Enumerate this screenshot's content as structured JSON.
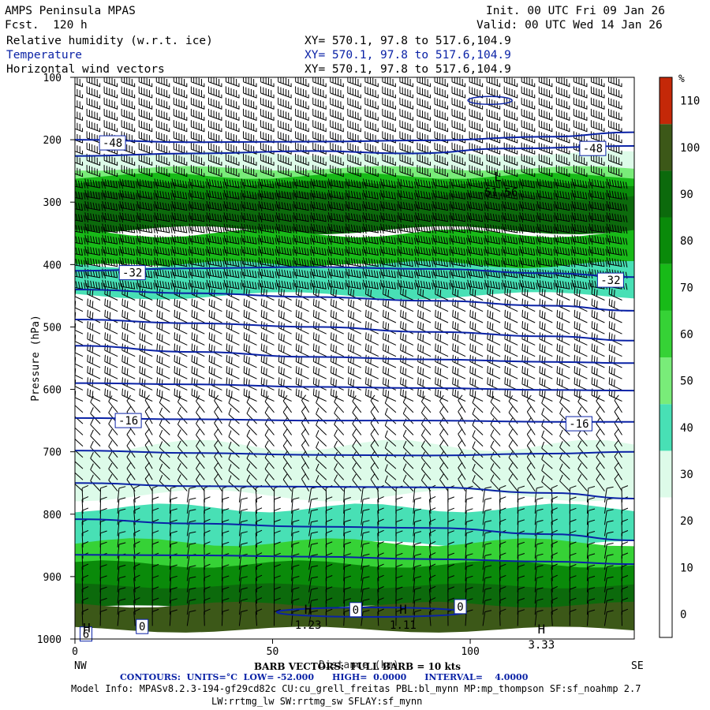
{
  "header": {
    "model": "AMPS Peninsula MPAS",
    "fcst": "Fcst.  120 h",
    "init": "Init. 00 UTC Fri 09 Jan 26",
    "valid": "Valid: 00 UTC Wed 14 Jan 26"
  },
  "fields": [
    {
      "label": "Relative humidity (w.r.t. ice)",
      "xy": "XY= 570.1, 97.8 to 517.6,104.9"
    },
    {
      "label": "Temperature",
      "xy": "XY= 570.1, 97.8 to 517.6,104.9"
    },
    {
      "label": "Horizontal wind vectors",
      "xy": "XY= 570.1, 97.8 to 517.6,104.9"
    }
  ],
  "colors": {
    "temperature_contour": "#0a22a6",
    "barb": "#000000",
    "rh_bands": [
      "#ffffff",
      "#ffffff",
      "#ffffff",
      "#ddfbe9",
      "#48e0b5",
      "#79ec79",
      "#36d236",
      "#18ba18",
      "#0a8a0a",
      "#0c6a0c",
      "#3c5818",
      "#c42808"
    ]
  },
  "chart_data": {
    "type": "heatmap",
    "ylabel": "Pressure (hPa)",
    "xlabel": "Distance (km)",
    "x_left_label": "NW",
    "x_right_label": "SE",
    "xlim": [
      0,
      141.5
    ],
    "ylim": [
      1000,
      100
    ],
    "x_ticks": [
      0,
      50,
      100
    ],
    "y_ticks": [
      100,
      200,
      300,
      400,
      500,
      600,
      700,
      800,
      900,
      1000
    ],
    "colorbar": {
      "unit": "%",
      "levels": [
        0,
        10,
        20,
        30,
        40,
        50,
        60,
        70,
        80,
        90,
        100,
        110
      ]
    },
    "rh_layers": [
      {
        "p_top": 222,
        "p_bot": 258,
        "rh": 35
      },
      {
        "p_top": 246,
        "p_bot": 278,
        "rh": 55
      },
      {
        "p_top": 258,
        "p_bot": 300,
        "rh": 75
      },
      {
        "p_top": 270,
        "p_bot": 312,
        "rh": 88
      },
      {
        "p_top": 290,
        "p_bot": 345,
        "rh": 95
      },
      {
        "p_top": 350,
        "p_bot": 405,
        "rh": 72
      },
      {
        "p_top": 400,
        "p_bot": 450,
        "rh": 45
      },
      {
        "p_top": 690,
        "p_bot": 770,
        "rh": 35
      },
      {
        "p_top": 790,
        "p_bot": 850,
        "rh": 45
      },
      {
        "p_top": 845,
        "p_bot": 900,
        "rh": 65
      },
      {
        "p_top": 880,
        "p_bot": 930,
        "rh": 80
      },
      {
        "p_top": 915,
        "p_bot": 950,
        "rh": 92
      },
      {
        "p_top": 945,
        "p_bot": 985,
        "rh": 105
      }
    ],
    "temperature_contours": [
      {
        "label": "-48",
        "x": [
          0,
          30,
          60,
          90,
          120,
          141.5
        ],
        "p": [
          200,
          204,
          203,
          201,
          195,
          188
        ]
      },
      {
        "label": "",
        "x": [
          0,
          30,
          60,
          85,
          110,
          141.5
        ],
        "p": [
          226,
          222,
          218,
          222,
          214,
          210
        ]
      },
      {
        "label": "-32",
        "x": [
          0,
          30,
          60,
          90,
          120,
          141.5
        ],
        "p": [
          410,
          406,
          404,
          407,
          414,
          420
        ]
      },
      {
        "label": "",
        "x": [
          0,
          30,
          60,
          90,
          120,
          141.5
        ],
        "p": [
          440,
          446,
          452,
          458,
          466,
          474
        ]
      },
      {
        "label": "",
        "x": [
          0,
          30,
          60,
          90,
          120,
          141.5
        ],
        "p": [
          488,
          494,
          500,
          508,
          515,
          522
        ]
      },
      {
        "label": "",
        "x": [
          0,
          30,
          60,
          90,
          120,
          141.5
        ],
        "p": [
          530,
          540,
          548,
          552,
          556,
          558
        ]
      },
      {
        "label": "",
        "x": [
          0,
          30,
          60,
          90,
          120,
          141.5
        ],
        "p": [
          590,
          592,
          596,
          598,
          601,
          602
        ]
      },
      {
        "label": "-16",
        "x": [
          0,
          30,
          60,
          90,
          120,
          141.5
        ],
        "p": [
          646,
          648,
          650,
          650,
          652,
          652
        ]
      },
      {
        "label": "",
        "x": [
          0,
          30,
          60,
          90,
          120,
          141.5
        ],
        "p": [
          698,
          702,
          705,
          706,
          703,
          700
        ]
      },
      {
        "label": "",
        "x": [
          0,
          30,
          60,
          90,
          120,
          141.5
        ],
        "p": [
          750,
          755,
          756,
          757,
          766,
          775
        ]
      },
      {
        "label": "",
        "x": [
          0,
          30,
          60,
          90,
          120,
          141.5
        ],
        "p": [
          808,
          815,
          820,
          822,
          832,
          842
        ]
      },
      {
        "label": "",
        "x": [
          0,
          30,
          60,
          90,
          120,
          141.5
        ],
        "p": [
          865,
          866,
          868,
          872,
          876,
          880
        ]
      }
    ],
    "contour_labels": [
      {
        "text": "-48",
        "x": 9.5,
        "p": 205
      },
      {
        "text": "-48",
        "x": 131,
        "p": 214
      },
      {
        "text": "-32",
        "x": 14.5,
        "p": 413
      },
      {
        "text": "-32",
        "x": 135.5,
        "p": 425
      },
      {
        "text": "-16",
        "x": 13.5,
        "p": 650
      },
      {
        "text": "-16",
        "x": 127.5,
        "p": 655
      },
      {
        "text": "0",
        "x": 71,
        "p": 953
      },
      {
        "text": "0",
        "x": 97.5,
        "p": 948
      },
      {
        "text": "0",
        "x": 17,
        "p": 980
      },
      {
        "text": "6",
        "x": 2.8,
        "p": 992
      }
    ],
    "extrema": [
      {
        "type": "L",
        "x": 107,
        "p": 260,
        "value": "-51.56"
      },
      {
        "type": "H",
        "x": 59,
        "p": 953,
        "value": "1.23"
      },
      {
        "type": "H",
        "x": 83,
        "p": 953,
        "value": "1.11"
      },
      {
        "type": "H",
        "x": 3,
        "p": 983,
        "value": ""
      },
      {
        "type": "H",
        "x": 118,
        "p": 985,
        "value": "3.33"
      }
    ],
    "wind_barbs": {
      "upper_wind_kts": 55,
      "jet_wind_kts": 80,
      "mid_wind_kts": 12,
      "low_wind_kts": 10,
      "direction_upper": "westerly",
      "direction_lower": "southerly"
    }
  },
  "footer": {
    "barb_note": "BARB VECTORS:  FULL BARB = 10 kts",
    "contours": "CONTOURS:  UNITS=°C  LOW= -52.000      HIGH=  0.0000      INTERVAL=    4.0000",
    "model_info": "Model Info: MPASv8.2.3-194-gf29cd82c CU:cu_grell_freitas PBL:bl_mynn MP:mp_thompson SF:sf_noahmp 2.7",
    "model_info2": "LW:rrtmg_lw SW:rrtmg_sw SFLAY:sf_mynn"
  }
}
